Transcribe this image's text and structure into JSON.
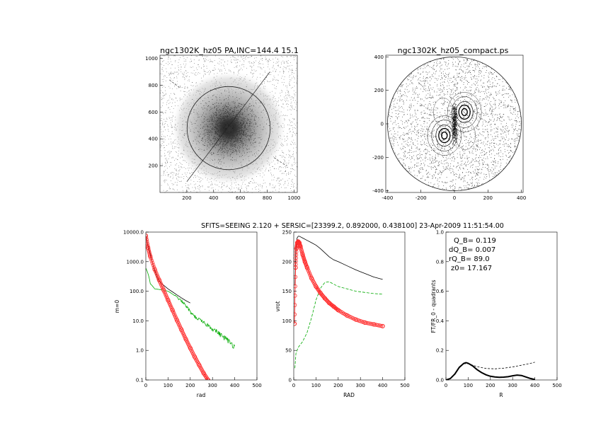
{
  "figure": {
    "suptitle": "SFITS=SEEING 2.120 + SERSIC=[23399.2, 0.892000, 0.438100]  23-Apr-2009 11:51:54.00"
  },
  "chart_data": [
    {
      "id": "image_map",
      "type": "scatter",
      "title": "ngc1302K_hz05 PA,INC=144.4 15.1",
      "xlabel": "",
      "ylabel": "",
      "xlim": [
        0,
        1024
      ],
      "ylim": [
        0,
        1024
      ],
      "xticks": [
        "200",
        "400",
        "600",
        "800",
        "1000"
      ],
      "yticks": [
        "200",
        "400",
        "600",
        "800",
        "1000"
      ],
      "center": [
        512,
        480
      ],
      "ellipse_radius": 310,
      "major_axis_line": {
        "from": [
          200,
          80
        ],
        "to": [
          820,
          900
        ]
      },
      "minor_axis_dashes": [
        [
          [
            70,
            840
          ],
          [
            150,
            780
          ]
        ],
        [
          [
            850,
            260
          ],
          [
            940,
            200
          ]
        ]
      ]
    },
    {
      "id": "compact_map",
      "type": "scatter",
      "title": "ngc1302K_hz05_compact.ps",
      "xlabel": "",
      "ylabel": "",
      "xlim": [
        -410,
        410
      ],
      "ylim": [
        -410,
        410
      ],
      "xticks": [
        "-400",
        "-200",
        "0",
        "200",
        "400"
      ],
      "yticks": [
        "-400",
        "-200",
        "0",
        "200",
        "400"
      ],
      "circle_radius": 400,
      "contour_centers": [
        [
          60,
          70
        ],
        [
          -60,
          -70
        ]
      ]
    },
    {
      "id": "mq_profile",
      "type": "line",
      "title": "",
      "xlabel": "rad",
      "ylabel": "m=0",
      "xlim": [
        0,
        500
      ],
      "ylim": [
        0.1,
        10000
      ],
      "yscale": "log",
      "xticks": [
        "0",
        "100",
        "200",
        "300",
        "400",
        "500"
      ],
      "yticks": [
        "0.1",
        "1.0",
        "10.0",
        "100.0",
        "1000.0",
        "10000.0"
      ],
      "series": [
        {
          "color": "#000000",
          "x": [
            0,
            10,
            20,
            30,
            40,
            50,
            60,
            80,
            100,
            120,
            140,
            160,
            180,
            200
          ],
          "y": [
            7500,
            3500,
            1800,
            900,
            500,
            300,
            220,
            160,
            120,
            95,
            75,
            60,
            48,
            40
          ]
        },
        {
          "color": "#00aa00",
          "x": [
            0,
            20,
            40,
            60,
            80,
            100,
            120,
            140,
            160,
            180,
            200,
            220,
            240,
            260,
            280,
            300,
            320,
            340,
            360,
            380,
            400
          ],
          "y": [
            600,
            180,
            120,
            115,
            110,
            100,
            80,
            62,
            47,
            32,
            20,
            14,
            11,
            8.5,
            7,
            5.5,
            4.3,
            3.2,
            2.5,
            1.8,
            1.4
          ]
        },
        {
          "color": "#ff0000",
          "x": [
            0,
            10,
            20,
            40,
            60,
            80,
            100,
            120,
            140,
            160,
            180,
            200,
            220,
            240,
            260,
            280
          ],
          "y": [
            7500,
            3000,
            1500,
            550,
            240,
            110,
            50,
            23,
            10.5,
            5.0,
            2.4,
            1.2,
            0.6,
            0.32,
            0.17,
            0.1
          ]
        }
      ]
    },
    {
      "id": "rotation_curve",
      "type": "line",
      "title": "",
      "xlabel": "RAD",
      "ylabel": "vrot",
      "xlim": [
        0,
        500
      ],
      "ylim": [
        0,
        250
      ],
      "xticks": [
        "0",
        "100",
        "200",
        "300",
        "400",
        "500"
      ],
      "yticks": [
        "0",
        "50",
        "100",
        "150",
        "200",
        "250"
      ],
      "series": [
        {
          "color": "#000000",
          "x": [
            5,
            10,
            15,
            20,
            25,
            30,
            40,
            60,
            80,
            100,
            120,
            140,
            160,
            180,
            200,
            240,
            280,
            320,
            360,
            400
          ],
          "y": [
            160,
            225,
            240,
            243,
            243,
            242,
            240,
            236,
            232,
            228,
            222,
            215,
            208,
            203,
            200,
            193,
            186,
            180,
            174,
            170
          ]
        },
        {
          "color": "#00aa00",
          "dash": "4,2",
          "x": [
            5,
            10,
            20,
            30,
            40,
            60,
            80,
            100,
            120,
            140,
            160,
            180,
            200,
            240,
            280,
            320,
            360,
            400
          ],
          "y": [
            20,
            45,
            55,
            60,
            65,
            80,
            105,
            135,
            155,
            165,
            166,
            162,
            158,
            154,
            150,
            148,
            146,
            145
          ]
        },
        {
          "color": "#ff0000",
          "x": [
            3,
            8,
            12,
            16,
            20,
            25,
            30,
            40,
            50,
            60,
            80,
            100,
            120,
            140,
            160,
            180,
            200,
            240,
            280,
            320,
            360,
            400
          ],
          "y": [
            95,
            190,
            222,
            232,
            234,
            232,
            226,
            212,
            200,
            190,
            172,
            158,
            147,
            138,
            130,
            124,
            118,
            109,
            102,
            97,
            94,
            91
          ]
        }
      ]
    },
    {
      "id": "qt_profile",
      "type": "line",
      "title": "",
      "xlabel": "R",
      "ylabel": "FT/FR_0 - quadrants",
      "xlim": [
        0,
        500
      ],
      "ylim": [
        0,
        1
      ],
      "xticks": [
        "0",
        "100",
        "200",
        "300",
        "400",
        "500"
      ],
      "yticks": [
        "0.0",
        "0.2",
        "0.4",
        "0.6",
        "0.8",
        "1.0"
      ],
      "annotations": [
        "Q_B=  0.119",
        "dQ_B=  0.007",
        "rQ_B=   89.0",
        "z0= 17.167"
      ],
      "series": [
        {
          "color": "#000000",
          "width": 2,
          "x": [
            0,
            20,
            40,
            60,
            80,
            90,
            100,
            120,
            140,
            160,
            180,
            200,
            220,
            240,
            260,
            280,
            300,
            320,
            340,
            360,
            380,
            400
          ],
          "y": [
            0,
            0.01,
            0.04,
            0.085,
            0.112,
            0.117,
            0.113,
            0.095,
            0.07,
            0.05,
            0.035,
            0.025,
            0.02,
            0.018,
            0.019,
            0.022,
            0.028,
            0.033,
            0.03,
            0.02,
            0.01,
            0.003
          ]
        },
        {
          "color": "#000000",
          "dash": "3,2",
          "width": 0.8,
          "x": [
            80,
            100,
            140,
            180,
            220,
            260,
            300,
            340,
            380,
            400
          ],
          "y": [
            0.11,
            0.11,
            0.09,
            0.078,
            0.075,
            0.08,
            0.088,
            0.1,
            0.112,
            0.12
          ]
        }
      ]
    }
  ]
}
